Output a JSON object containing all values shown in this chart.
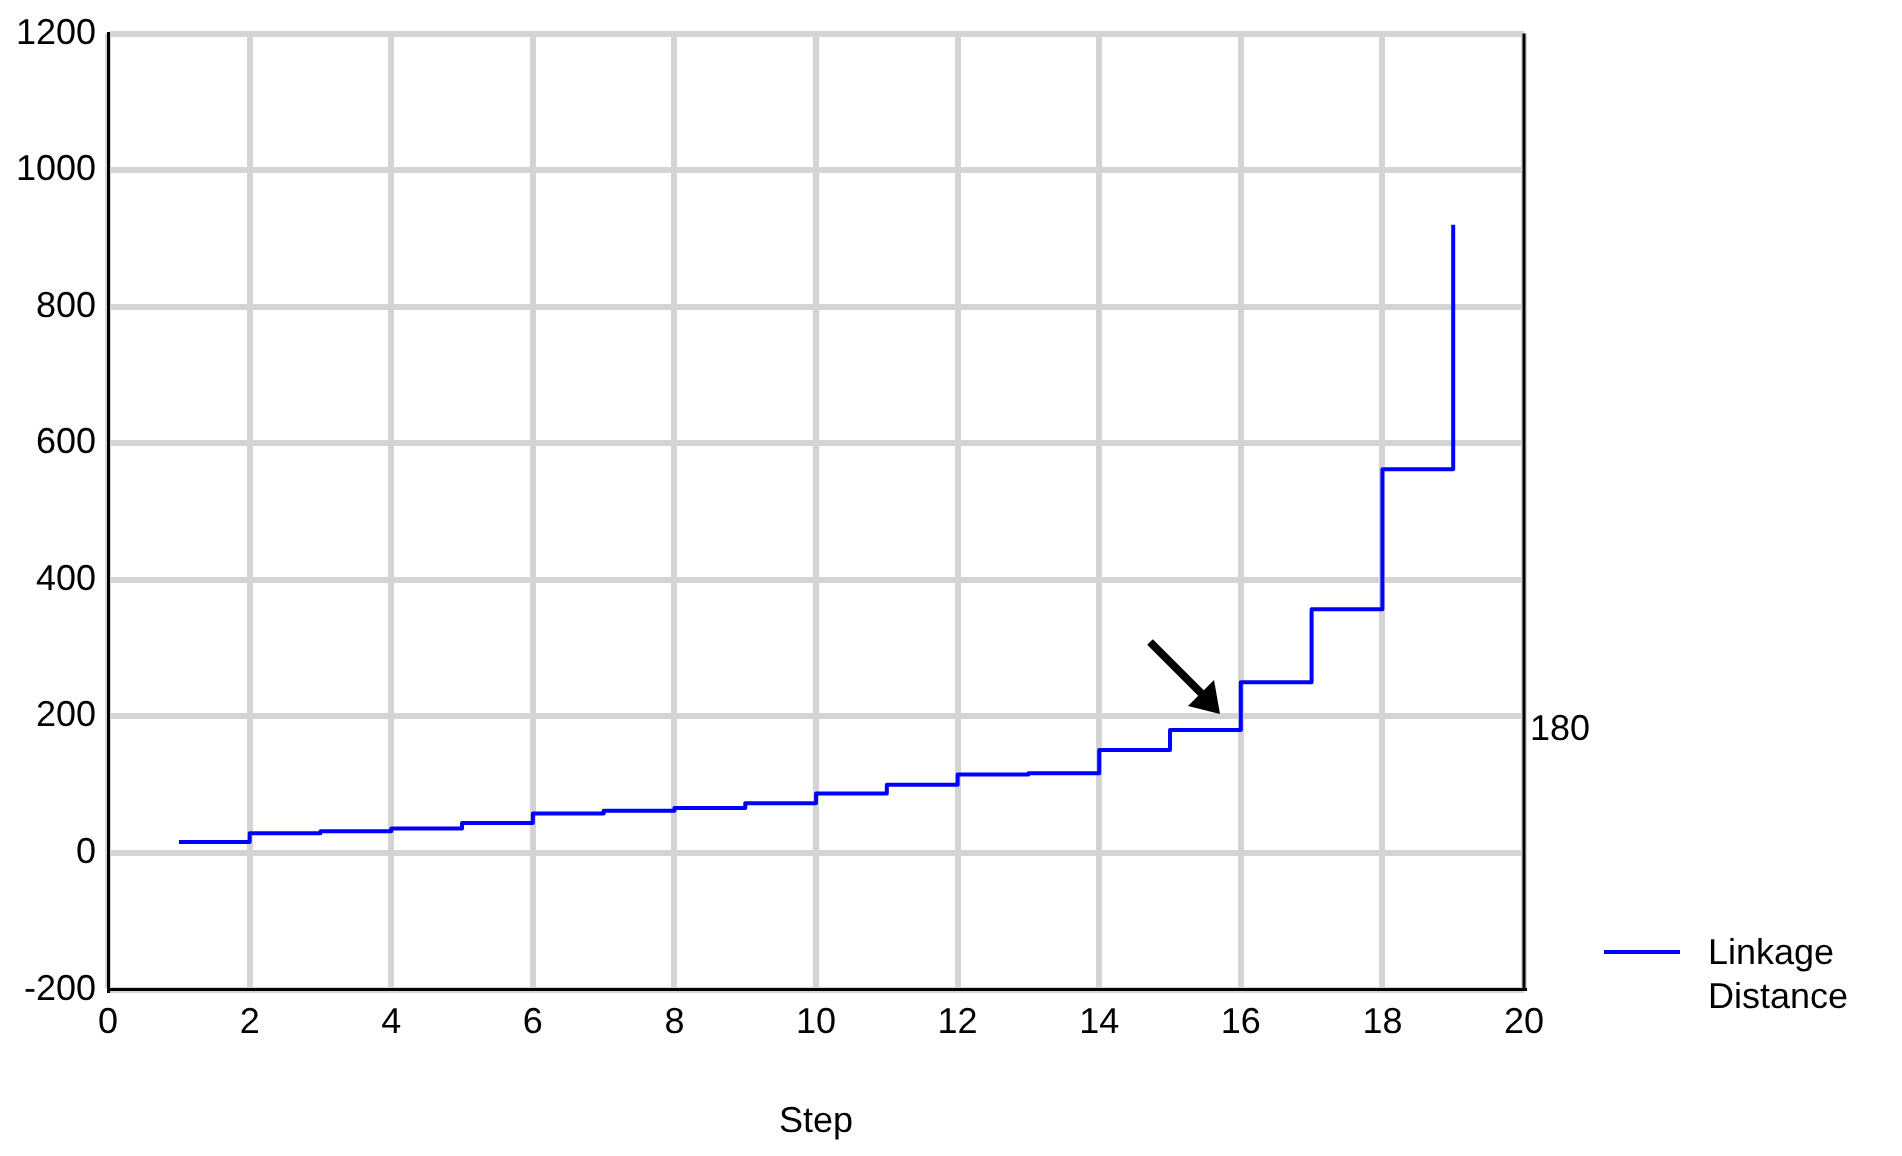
{
  "chart_data": {
    "type": "step",
    "xlabel": "Step",
    "x": [
      1,
      2,
      3,
      4,
      5,
      6,
      7,
      8,
      9,
      10,
      11,
      12,
      13,
      14,
      15,
      16,
      17,
      18,
      19
    ],
    "series": [
      {
        "name": "Linkage Distance",
        "color": "#0000ff",
        "values": [
          16,
          29,
          32,
          36,
          44,
          58,
          62,
          66,
          73,
          87,
          100,
          115,
          117,
          151,
          180,
          250,
          357,
          562,
          920
        ]
      }
    ],
    "xlim": [
      0,
      20
    ],
    "xticks": [
      0,
      2,
      4,
      6,
      8,
      10,
      12,
      14,
      16,
      18,
      20
    ],
    "ylim": [
      -200,
      1200
    ],
    "yticks": [
      -200,
      0,
      200,
      400,
      600,
      800,
      1000,
      1200
    ],
    "annotations": [
      "180"
    ],
    "grid": true,
    "legend": "bottom right",
    "line_style": "solid",
    "marker": "none"
  }
}
